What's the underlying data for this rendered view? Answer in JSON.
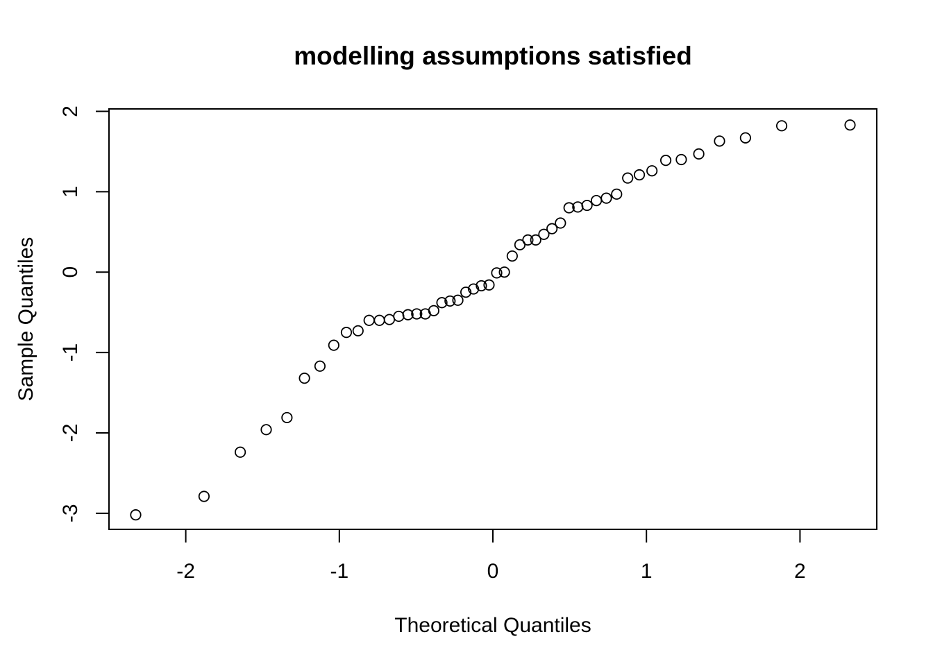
{
  "chart_data": {
    "type": "scatter",
    "title": "modelling assumptions satisfied",
    "xlabel": "Theoretical Quantiles",
    "ylabel": "Sample Quantiles",
    "xlim": [
      -2.5,
      2.5
    ],
    "ylim": [
      -3.2,
      2.03
    ],
    "x_ticks": [
      -2,
      -1,
      0,
      1,
      2
    ],
    "x_tick_labels": [
      "-2",
      "-1",
      "0",
      "1",
      "2"
    ],
    "y_ticks": [
      -3,
      -2,
      -1,
      0,
      1,
      2
    ],
    "y_tick_labels": [
      "-3",
      "-2",
      "-1",
      "0",
      "1",
      "2"
    ],
    "grid": false,
    "legend": false,
    "series": [
      {
        "marker": "open-circle",
        "color": "#000000",
        "points": [
          [
            -2.326,
            -3.02
          ],
          [
            -1.881,
            -2.79
          ],
          [
            -1.645,
            -2.24
          ],
          [
            -1.476,
            -1.96
          ],
          [
            -1.341,
            -1.81
          ],
          [
            -1.227,
            -1.32
          ],
          [
            -1.126,
            -1.17
          ],
          [
            -1.036,
            -0.91
          ],
          [
            -0.954,
            -0.75
          ],
          [
            -0.878,
            -0.73
          ],
          [
            -0.806,
            -0.6
          ],
          [
            -0.739,
            -0.6
          ],
          [
            -0.674,
            -0.59
          ],
          [
            -0.613,
            -0.55
          ],
          [
            -0.553,
            -0.53
          ],
          [
            -0.496,
            -0.52
          ],
          [
            -0.44,
            -0.52
          ],
          [
            -0.385,
            -0.48
          ],
          [
            -0.332,
            -0.38
          ],
          [
            -0.279,
            -0.36
          ],
          [
            -0.228,
            -0.35
          ],
          [
            -0.176,
            -0.25
          ],
          [
            -0.126,
            -0.21
          ],
          [
            -0.075,
            -0.17
          ],
          [
            -0.025,
            -0.16
          ],
          [
            0.025,
            -0.01
          ],
          [
            0.075,
            0.0
          ],
          [
            0.126,
            0.2
          ],
          [
            0.176,
            0.34
          ],
          [
            0.228,
            0.4
          ],
          [
            0.279,
            0.4
          ],
          [
            0.332,
            0.47
          ],
          [
            0.385,
            0.54
          ],
          [
            0.44,
            0.61
          ],
          [
            0.496,
            0.8
          ],
          [
            0.553,
            0.81
          ],
          [
            0.613,
            0.83
          ],
          [
            0.674,
            0.89
          ],
          [
            0.739,
            0.92
          ],
          [
            0.806,
            0.97
          ],
          [
            0.878,
            1.17
          ],
          [
            0.954,
            1.21
          ],
          [
            1.036,
            1.26
          ],
          [
            1.126,
            1.39
          ],
          [
            1.227,
            1.4
          ],
          [
            1.341,
            1.47
          ],
          [
            1.476,
            1.63
          ],
          [
            1.645,
            1.67
          ],
          [
            1.881,
            1.82
          ],
          [
            2.326,
            1.83
          ]
        ]
      }
    ]
  }
}
